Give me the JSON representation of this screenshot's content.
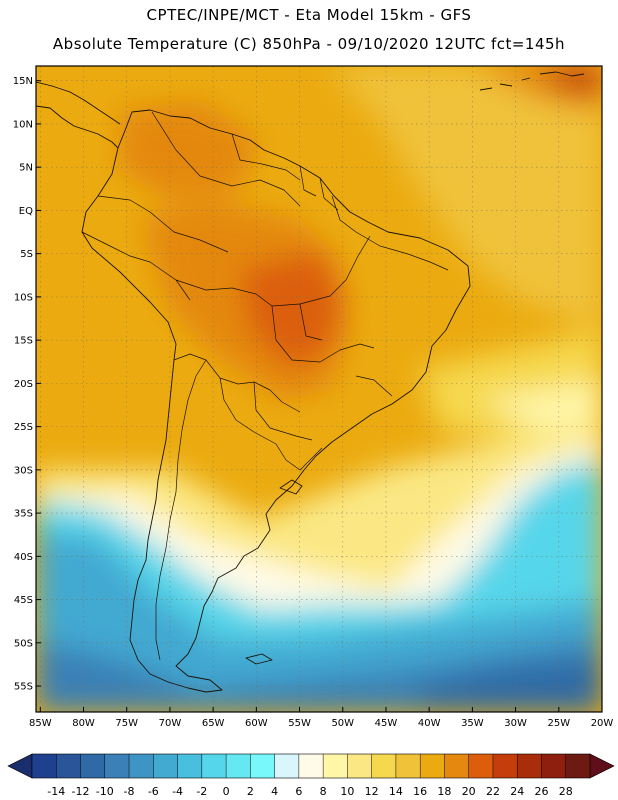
{
  "header": {
    "line1": "CPTEC/INPE/MCT -   Eta Model 15km - GFS",
    "line2": "Absolute Temperature (C) 850hPa - 09/10/2020 12UTC fct=145h"
  },
  "map": {
    "lat_labels": [
      "15N",
      "10N",
      "5N",
      "EQ",
      "5S",
      "10S",
      "15S",
      "20S",
      "25S",
      "30S",
      "35S",
      "40S",
      "45S",
      "50S",
      "55S"
    ],
    "lon_labels": [
      "85W",
      "80W",
      "75W",
      "70W",
      "65W",
      "60W",
      "55W",
      "50W",
      "45W",
      "40W",
      "35W",
      "30W",
      "25W",
      "20W"
    ],
    "lat_values": [
      15,
      10,
      5,
      0,
      -5,
      -10,
      -15,
      -20,
      -25,
      -30,
      -35,
      -40,
      -45,
      -50,
      -55
    ],
    "lon_values": [
      -85,
      -80,
      -75,
      -70,
      -65,
      -60,
      -55,
      -50,
      -45,
      -40,
      -35,
      -30,
      -25,
      -20
    ],
    "extent": {
      "lon_min": -85.5,
      "lon_max": -20,
      "lat_min": -58,
      "lat_max": 16.7
    }
  },
  "colorbar": {
    "labels": [
      "-14",
      "-12",
      "-10",
      "-8",
      "-6",
      "-4",
      "-2",
      "0",
      "2",
      "4",
      "6",
      "8",
      "10",
      "12",
      "14",
      "16",
      "18",
      "20",
      "22",
      "24",
      "26",
      "28"
    ],
    "colors": [
      "#1f3f8f",
      "#2a5599",
      "#2f6aa6",
      "#3b80b6",
      "#3e94c4",
      "#42a9d1",
      "#48bfdf",
      "#56d6ea",
      "#66e8f2",
      "#78f8fb",
      "#d8f6fb",
      "#fffbe8",
      "#fff6a8",
      "#fbe884",
      "#f6d84e",
      "#f0c23a",
      "#ebab10",
      "#e4880f",
      "#dc5e0c",
      "#c43d0a",
      "#a82e0b",
      "#8e1e0e",
      "#6c1a12"
    ],
    "end_colors": [
      "#1a2e6e",
      "#5e0f19"
    ]
  }
}
